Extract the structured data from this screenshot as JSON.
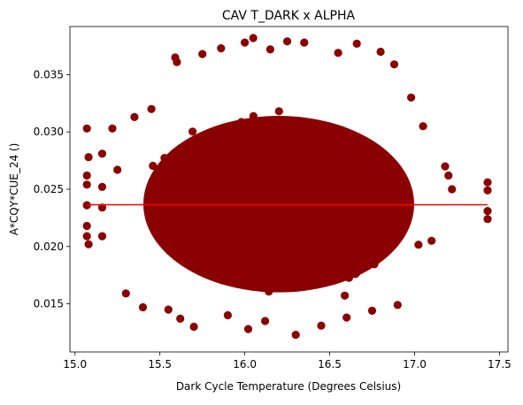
{
  "chart_data": {
    "type": "scatter",
    "title": "CAV T_DARK x ALPHA",
    "xlabel": "Dark Cycle Temperature (Degrees Celsius)",
    "ylabel": "A*CQY*CUE_24 ()",
    "xlim": [
      14.97,
      17.55
    ],
    "ylim": [
      0.0108,
      0.0392
    ],
    "xticks": [
      "15.0",
      "15.5",
      "16.0",
      "16.5",
      "17.0",
      "17.5"
    ],
    "yticks": [
      "0.015",
      "0.020",
      "0.025",
      "0.030",
      "0.035"
    ],
    "grid": false,
    "point_color": "#8b0000",
    "fit_line_color": "#ff0000",
    "fit_line": {
      "x": [
        15.07,
        17.43
      ],
      "y": [
        0.02365,
        0.02365
      ]
    },
    "scatter_cloud": {
      "center_x": 16.2,
      "center_y": 0.0237,
      "x_range": [
        15.07,
        17.43
      ],
      "y_range": [
        0.0122,
        0.0382
      ],
      "approx_points": 10000
    },
    "outlier_points": [
      {
        "x": 15.07,
        "y": 0.0303
      },
      {
        "x": 15.08,
        "y": 0.0278
      },
      {
        "x": 15.07,
        "y": 0.0262
      },
      {
        "x": 15.07,
        "y": 0.0254
      },
      {
        "x": 15.07,
        "y": 0.0236
      },
      {
        "x": 15.07,
        "y": 0.0218
      },
      {
        "x": 15.07,
        "y": 0.0209
      },
      {
        "x": 15.08,
        "y": 0.0202
      },
      {
        "x": 15.16,
        "y": 0.0281
      },
      {
        "x": 15.16,
        "y": 0.0252
      },
      {
        "x": 15.16,
        "y": 0.0234
      },
      {
        "x": 15.16,
        "y": 0.0209
      },
      {
        "x": 15.22,
        "y": 0.0303
      },
      {
        "x": 15.25,
        "y": 0.0267
      },
      {
        "x": 15.3,
        "y": 0.0159
      },
      {
        "x": 15.35,
        "y": 0.0313
      },
      {
        "x": 15.4,
        "y": 0.0147
      },
      {
        "x": 15.45,
        "y": 0.032
      },
      {
        "x": 15.55,
        "y": 0.0145
      },
      {
        "x": 15.59,
        "y": 0.0365
      },
      {
        "x": 15.6,
        "y": 0.0361
      },
      {
        "x": 15.62,
        "y": 0.0137
      },
      {
        "x": 15.7,
        "y": 0.013
      },
      {
        "x": 15.75,
        "y": 0.0368
      },
      {
        "x": 15.86,
        "y": 0.0373
      },
      {
        "x": 15.9,
        "y": 0.014
      },
      {
        "x": 16.0,
        "y": 0.0378
      },
      {
        "x": 16.05,
        "y": 0.0382
      },
      {
        "x": 16.02,
        "y": 0.0128
      },
      {
        "x": 16.12,
        "y": 0.0135
      },
      {
        "x": 16.15,
        "y": 0.0372
      },
      {
        "x": 16.25,
        "y": 0.0379
      },
      {
        "x": 16.3,
        "y": 0.0123
      },
      {
        "x": 16.35,
        "y": 0.0378
      },
      {
        "x": 16.45,
        "y": 0.0131
      },
      {
        "x": 16.55,
        "y": 0.0369
      },
      {
        "x": 16.66,
        "y": 0.0377
      },
      {
        "x": 16.6,
        "y": 0.0138
      },
      {
        "x": 16.8,
        "y": 0.037
      },
      {
        "x": 16.75,
        "y": 0.0144
      },
      {
        "x": 16.88,
        "y": 0.0359
      },
      {
        "x": 16.9,
        "y": 0.0149
      },
      {
        "x": 16.98,
        "y": 0.033
      },
      {
        "x": 17.05,
        "y": 0.0305
      },
      {
        "x": 17.1,
        "y": 0.0205
      },
      {
        "x": 17.2,
        "y": 0.0262
      },
      {
        "x": 17.22,
        "y": 0.025
      },
      {
        "x": 17.18,
        "y": 0.027
      },
      {
        "x": 17.43,
        "y": 0.0256
      },
      {
        "x": 17.43,
        "y": 0.0249
      },
      {
        "x": 17.43,
        "y": 0.0231
      },
      {
        "x": 17.43,
        "y": 0.0224
      }
    ]
  }
}
